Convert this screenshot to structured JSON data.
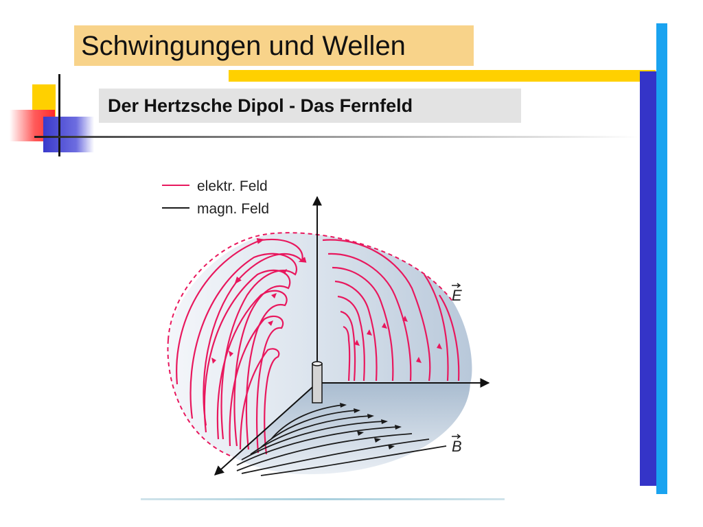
{
  "slide": {
    "title": "Schwingungen und Wellen",
    "subtitle": "Der Hertzsche Dipol - Das Fernfeld"
  },
  "figure": {
    "legend": [
      {
        "label": "elektr. Feld",
        "color": "#e8175d"
      },
      {
        "label": "magn. Feld",
        "color": "#1a1a1a"
      }
    ],
    "label_e": "E",
    "label_b": "B",
    "shell_color": "#b9c8d8"
  },
  "colors": {
    "title_box": "#f8d38a",
    "subtitle_box": "#e3e3e3",
    "accent_yellow": "#ffd000",
    "accent_blue": "#3434c8",
    "accent_cyan": "#1aa3f0",
    "electric_field": "#e8175d",
    "magnetic_field": "#1a1a1a"
  }
}
